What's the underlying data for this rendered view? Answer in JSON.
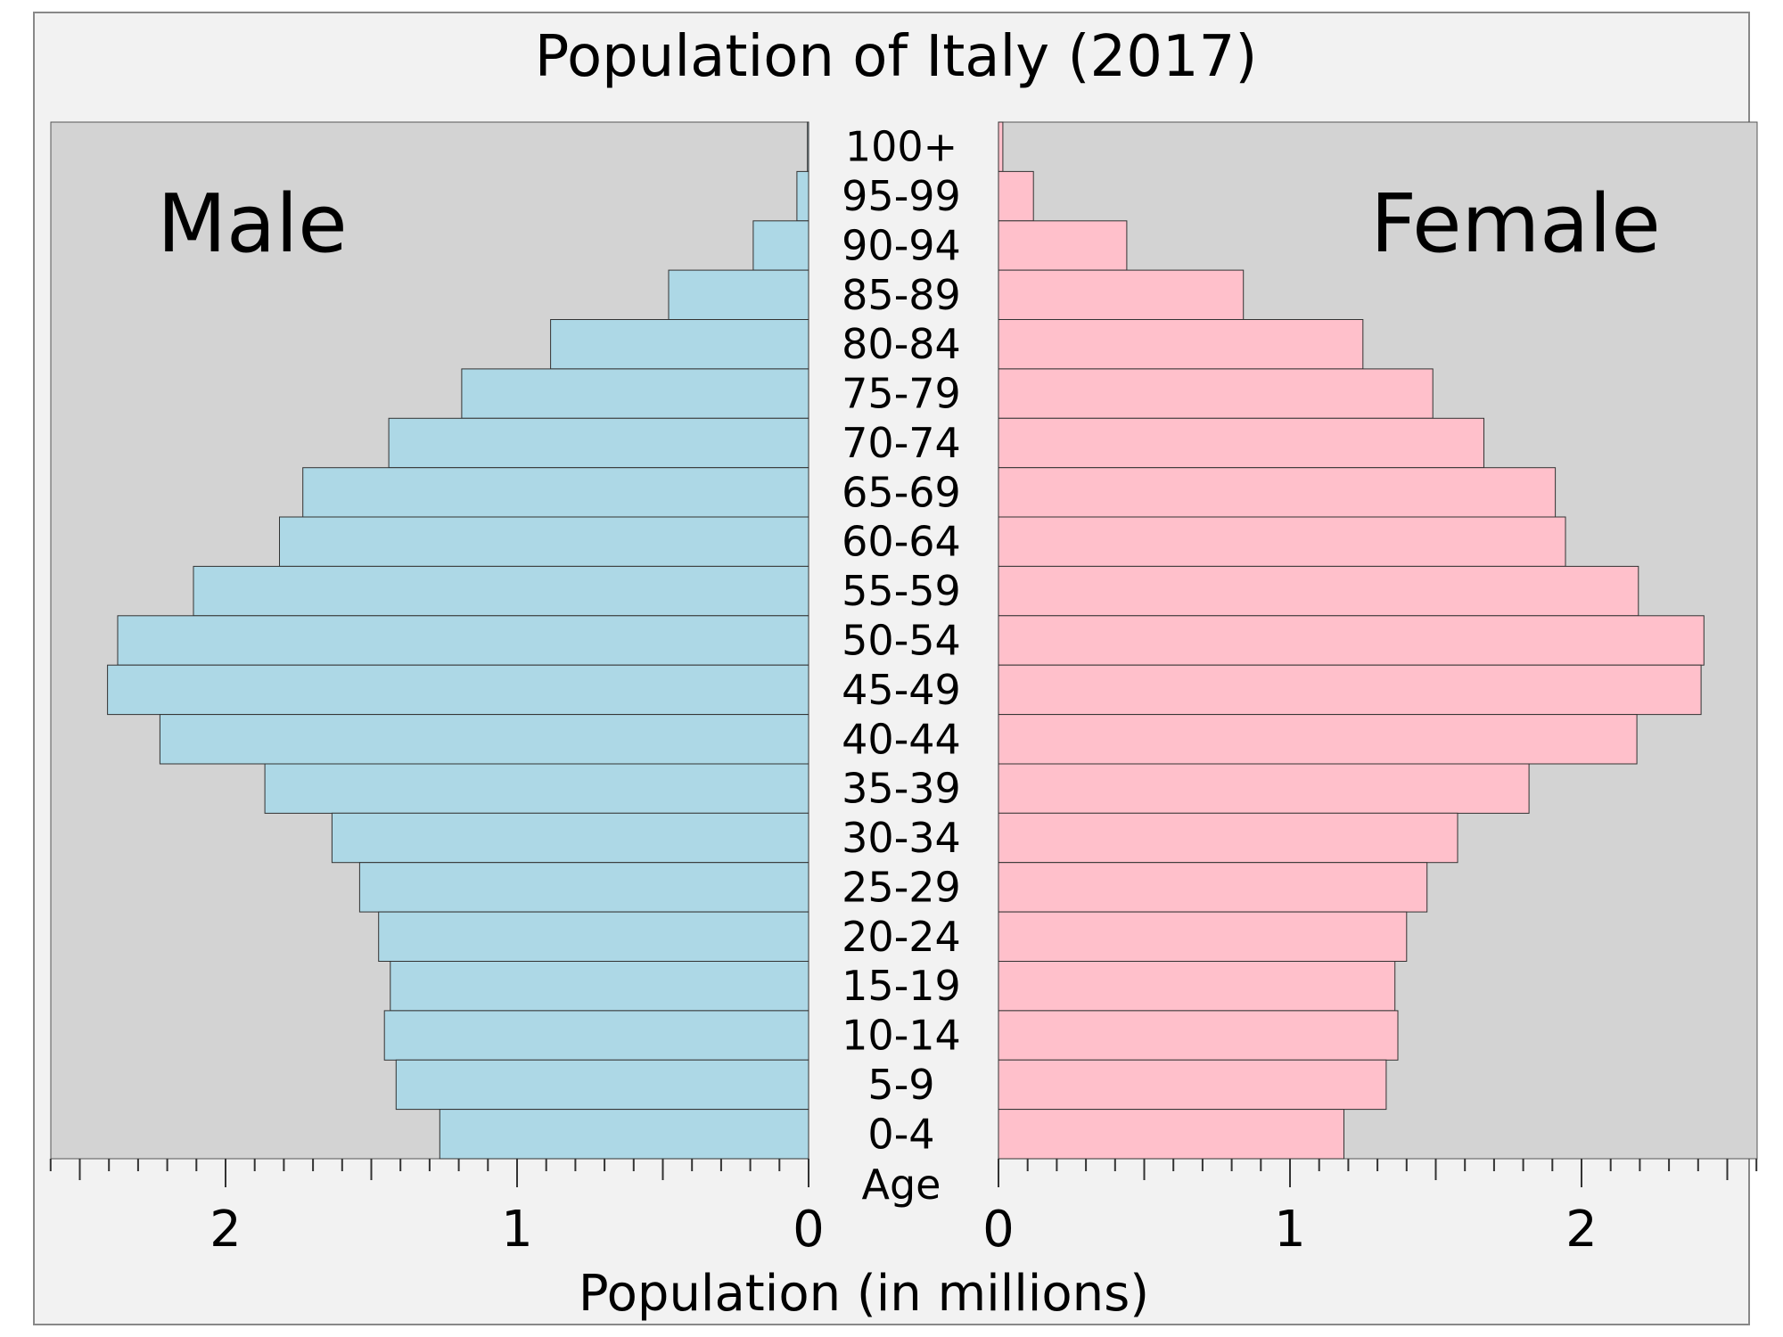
{
  "chart_data": {
    "type": "bar",
    "title": "Population of Italy (2017)",
    "xlabel": "Population (in millions)",
    "age_axis_label": "Age",
    "xlim": [
      0,
      2.6
    ],
    "x_ticks": [
      "2",
      "1",
      "0",
      "0",
      "1",
      "2"
    ],
    "categories": [
      "100+",
      "95-99",
      "90-94",
      "85-89",
      "80-84",
      "75-79",
      "70-74",
      "65-69",
      "60-64",
      "55-59",
      "50-54",
      "45-49",
      "40-44",
      "35-39",
      "30-34",
      "25-29",
      "20-24",
      "15-19",
      "10-14",
      "5-9",
      "0-4"
    ],
    "series": [
      {
        "name": "Male",
        "color": "#add8e6",
        "values": [
          0.004,
          0.04,
          0.19,
          0.48,
          0.885,
          1.19,
          1.44,
          1.735,
          1.815,
          2.11,
          2.37,
          2.405,
          2.225,
          1.865,
          1.635,
          1.54,
          1.475,
          1.435,
          1.455,
          1.415,
          1.265
        ]
      },
      {
        "name": "Female",
        "color": "#ffc0cb",
        "values": [
          0.015,
          0.12,
          0.44,
          0.84,
          1.25,
          1.49,
          1.665,
          1.91,
          1.945,
          2.195,
          2.42,
          2.41,
          2.19,
          1.82,
          1.575,
          1.47,
          1.4,
          1.36,
          1.37,
          1.33,
          1.185
        ]
      }
    ],
    "grid": false,
    "legend": "in-plot labels"
  }
}
